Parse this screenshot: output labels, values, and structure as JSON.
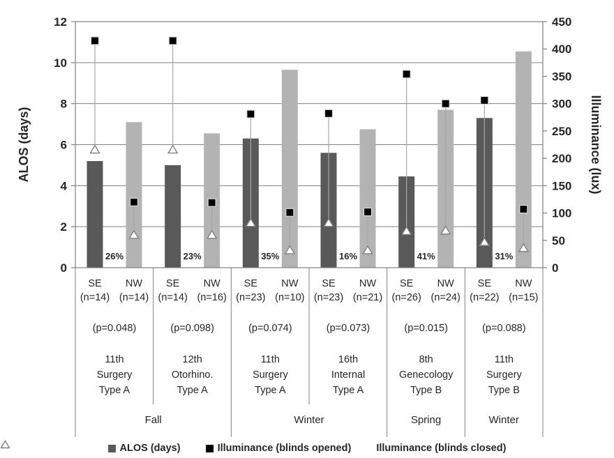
{
  "colors": {
    "se_bar": "#595959",
    "nw_bar": "#b3b3b3",
    "grid": "#808080",
    "axis": "#808080",
    "text": "#262626",
    "marker_opened_fill": "#000000",
    "marker_opened_stroke": "#d9d9d9",
    "marker_closed_fill": "#ffffff",
    "marker_closed_stroke": "#808080",
    "connector": "#a6a6a6"
  },
  "legend": {
    "items": [
      {
        "icon": "alos-swatch",
        "label": "ALOS (days)"
      },
      {
        "icon": "blinds-opened-swatch",
        "label": "Illuminance (blinds opened)"
      },
      {
        "icon": "blinds-closed-swatch",
        "label": "Illuminance (blinds closed)"
      }
    ]
  },
  "chart_data": {
    "type": "bar",
    "title": "",
    "left_axis": {
      "label": "ALOS (days)",
      "min": 0,
      "max": 12,
      "step": 2,
      "ticks": [
        0,
        2,
        4,
        6,
        8,
        10,
        12
      ]
    },
    "right_axis": {
      "label": "Illuminance (lux)",
      "min": 0,
      "max": 450,
      "step": 50,
      "ticks": [
        0,
        50,
        100,
        150,
        200,
        250,
        300,
        350,
        400,
        450
      ]
    },
    "grid": true,
    "legend_position": "bottom",
    "groups": [
      {
        "department": [
          "11th",
          "Surgery",
          "Type A"
        ],
        "p_label": "(p=0.048)",
        "reduction_pct": "26%",
        "bars": [
          {
            "orientation": "SE",
            "n_label": "(n=14)",
            "alos_days": 5.2,
            "illuminance_opened_lux": 415,
            "illuminance_closed_lux": 216
          },
          {
            "orientation": "NW",
            "n_label": "(n=14)",
            "alos_days": 7.1,
            "illuminance_opened_lux": 120,
            "illuminance_closed_lux": 60
          }
        ]
      },
      {
        "department": [
          "12th",
          "Otorhino.",
          "Type A"
        ],
        "p_label": "(p=0.098)",
        "reduction_pct": "23%",
        "bars": [
          {
            "orientation": "SE",
            "n_label": "(n=14)",
            "alos_days": 5.0,
            "illuminance_opened_lux": 415,
            "illuminance_closed_lux": 216
          },
          {
            "orientation": "NW",
            "n_label": "(n=16)",
            "alos_days": 6.55,
            "illuminance_opened_lux": 119,
            "illuminance_closed_lux": 60
          }
        ]
      },
      {
        "department": [
          "11th",
          "Surgery",
          "Type A"
        ],
        "p_label": "(p=0.074)",
        "reduction_pct": "35%",
        "bars": [
          {
            "orientation": "SE",
            "n_label": "(n=23)",
            "alos_days": 6.3,
            "illuminance_opened_lux": 281,
            "illuminance_closed_lux": 82
          },
          {
            "orientation": "NW",
            "n_label": "(n=10)",
            "alos_days": 9.65,
            "illuminance_opened_lux": 101,
            "illuminance_closed_lux": 32
          }
        ]
      },
      {
        "department": [
          "16th",
          "Internal",
          "Type A"
        ],
        "p_label": "(p=0.073)",
        "reduction_pct": "16%",
        "bars": [
          {
            "orientation": "SE",
            "n_label": "(n=23)",
            "alos_days": 5.6,
            "illuminance_opened_lux": 282,
            "illuminance_closed_lux": 82
          },
          {
            "orientation": "NW",
            "n_label": "(n=21)",
            "alos_days": 6.75,
            "illuminance_opened_lux": 102,
            "illuminance_closed_lux": 32
          }
        ]
      },
      {
        "department": [
          "8th",
          "Genecology",
          "Type B"
        ],
        "p_label": "(p=0.015)",
        "reduction_pct": "41%",
        "bars": [
          {
            "orientation": "SE",
            "n_label": "(n=26)",
            "alos_days": 4.45,
            "illuminance_opened_lux": 354,
            "illuminance_closed_lux": 67
          },
          {
            "orientation": "NW",
            "n_label": "(n=24)",
            "alos_days": 7.7,
            "illuminance_opened_lux": 300,
            "illuminance_closed_lux": 68
          }
        ]
      },
      {
        "department": [
          "11th",
          "Surgery",
          "Type B"
        ],
        "p_label": "(p=0.088)",
        "reduction_pct": "31%",
        "bars": [
          {
            "orientation": "SE",
            "n_label": "(n=22)",
            "alos_days": 7.3,
            "illuminance_opened_lux": 306,
            "illuminance_closed_lux": 47
          },
          {
            "orientation": "NW",
            "n_label": "(n=15)",
            "alos_days": 10.55,
            "illuminance_opened_lux": 107,
            "illuminance_closed_lux": 36
          }
        ]
      }
    ],
    "season_spans": [
      {
        "label": "Fall",
        "from": 0,
        "to": 1
      },
      {
        "label": "Winter",
        "from": 2,
        "to": 3
      },
      {
        "label": "Spring",
        "from": 4,
        "to": 4
      },
      {
        "label": "Winter",
        "from": 5,
        "to": 5
      }
    ]
  }
}
